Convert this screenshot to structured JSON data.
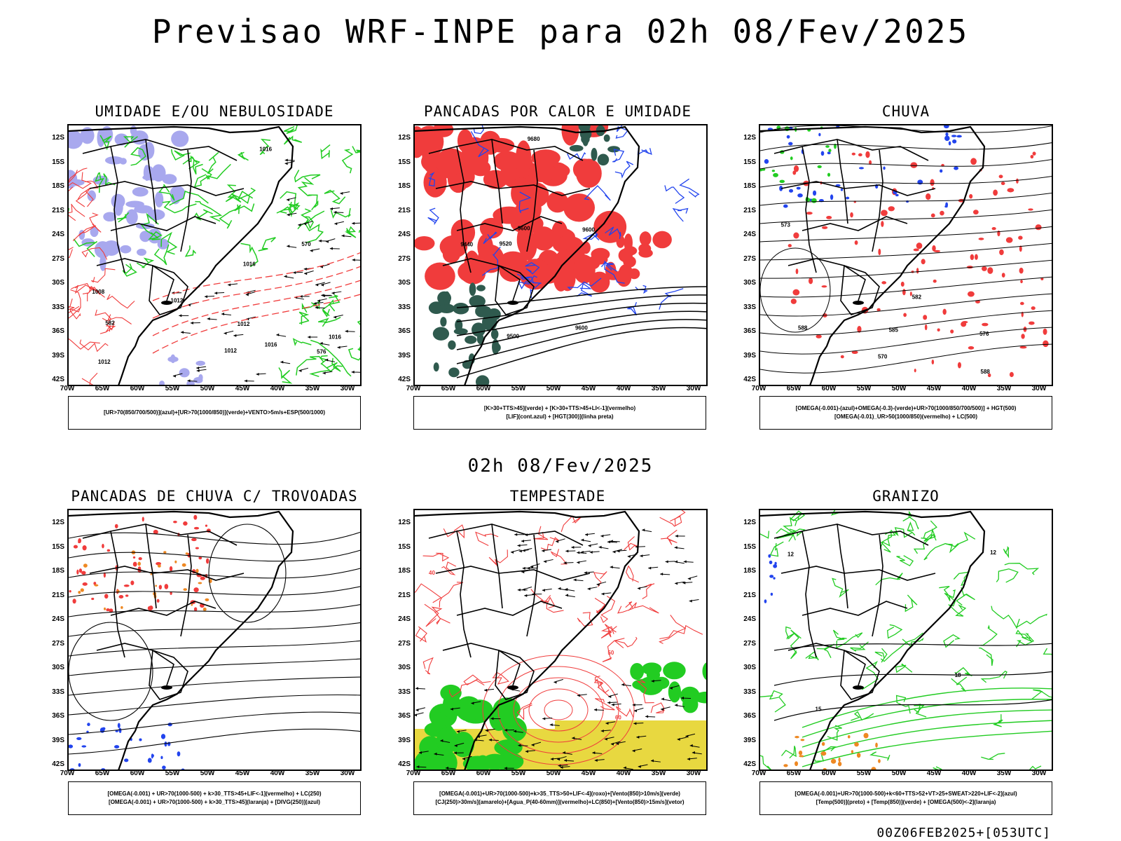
{
  "header": {
    "title": "Previsao WRF-INPE  para 02h 08/Fev/2025",
    "mid_title": "02h 08/Fev/2025",
    "footer": "00Z06FEB2025+[053UTC]"
  },
  "axes": {
    "lat_labels": [
      "12S",
      "15S",
      "18S",
      "21S",
      "24S",
      "27S",
      "30S",
      "33S",
      "36S",
      "39S",
      "42S"
    ],
    "lon_labels": [
      "70W",
      "65W",
      "60W",
      "55W",
      "50W",
      "45W",
      "40W",
      "35W",
      "30W"
    ]
  },
  "colors": {
    "black": "#000000",
    "red": "#f03c3c",
    "green": "#22cc22",
    "blue": "#2244ee",
    "lavender": "#a8a8ee",
    "darkgreen": "#2f5a4e",
    "yellow": "#e8d840",
    "orange": "#ee8822"
  },
  "panels": [
    {
      "id": "umidade",
      "title": "UMIDADE E/OU NEBULOSIDADE",
      "legend": [
        "[UR>70(850/700/500)](azul)+[UR>70(1000/850)](verde)+VENTO>5m/s+ESP(500/1000)"
      ]
    },
    {
      "id": "pancadas-calor",
      "title": "PANCADAS POR CALOR E UMIDADE",
      "legend": [
        "[K>30+TTS>45](verde) + [K>30+TTS>45+LI<-1](vermelho)",
        "[LIF](cont.azul) + [HGT(300)](linha preta)"
      ]
    },
    {
      "id": "chuva",
      "title": "CHUVA",
      "legend": [
        "[OMEGA(-0.001)-(azul)+OMEGA(-0.3)-(verde)+UR>70(1000/850/700/500)] + HGT(500)",
        "[OMEGA(-0.01)_UR>50(1000/850)(vermelho) + LC(500)"
      ]
    },
    {
      "id": "trovoadas",
      "title": "PANCADAS DE CHUVA C/ TROVOADAS",
      "legend": [
        "[OMEGA(-0.001) + UR>70(1000-500) + k>30_TTS>45+LIF<-1](vermelho) + LC(250)",
        "[OMEGA(-0.001) + UR>70(1000-500) + k>30_TTS>45](laranja) + [DIVG(250)](azul)"
      ]
    },
    {
      "id": "tempestade",
      "title": "TEMPESTADE",
      "legend": [
        "[OMEGA(-0.001)+UR>70(1000-500)+k>35_TTS>50+LIF<-4](roxo)+[Vento(850)>10m/s](verde)",
        "[CJ(250)>30m/s](amarelo)+[Agua_P(40-60mm)](vermelho)+LC(850)+[Vento(850)>15m/s](vetor)"
      ]
    },
    {
      "id": "granizo",
      "title": "GRANIZO",
      "legend": [
        "[OMEGA(-0.001)+UR>70(1000-500)+k<60+TTS>52+VT>25+SWEAT>220+LIF<-2](azul)",
        "[Temp(500)](preto) + [Temp(850)](verde) + [OMEGA(500)<-2](laranja)"
      ]
    }
  ],
  "contour_labels": {
    "umidade": [
      "1012",
      "1012",
      "1012",
      "1012",
      "1016",
      "1016",
      "1016",
      "1016",
      "1008",
      "576",
      "582",
      "570"
    ],
    "pancadas-calor": [
      "9600",
      "9600",
      "9600",
      "9520",
      "9440",
      "9680",
      "9500"
    ],
    "chuva": [
      "582",
      "585",
      "588",
      "588",
      "576",
      "573",
      "570"
    ],
    "tempestade": [
      "40",
      "50",
      "60"
    ],
    "granizo": [
      "12",
      "12",
      "15",
      "18"
    ]
  }
}
